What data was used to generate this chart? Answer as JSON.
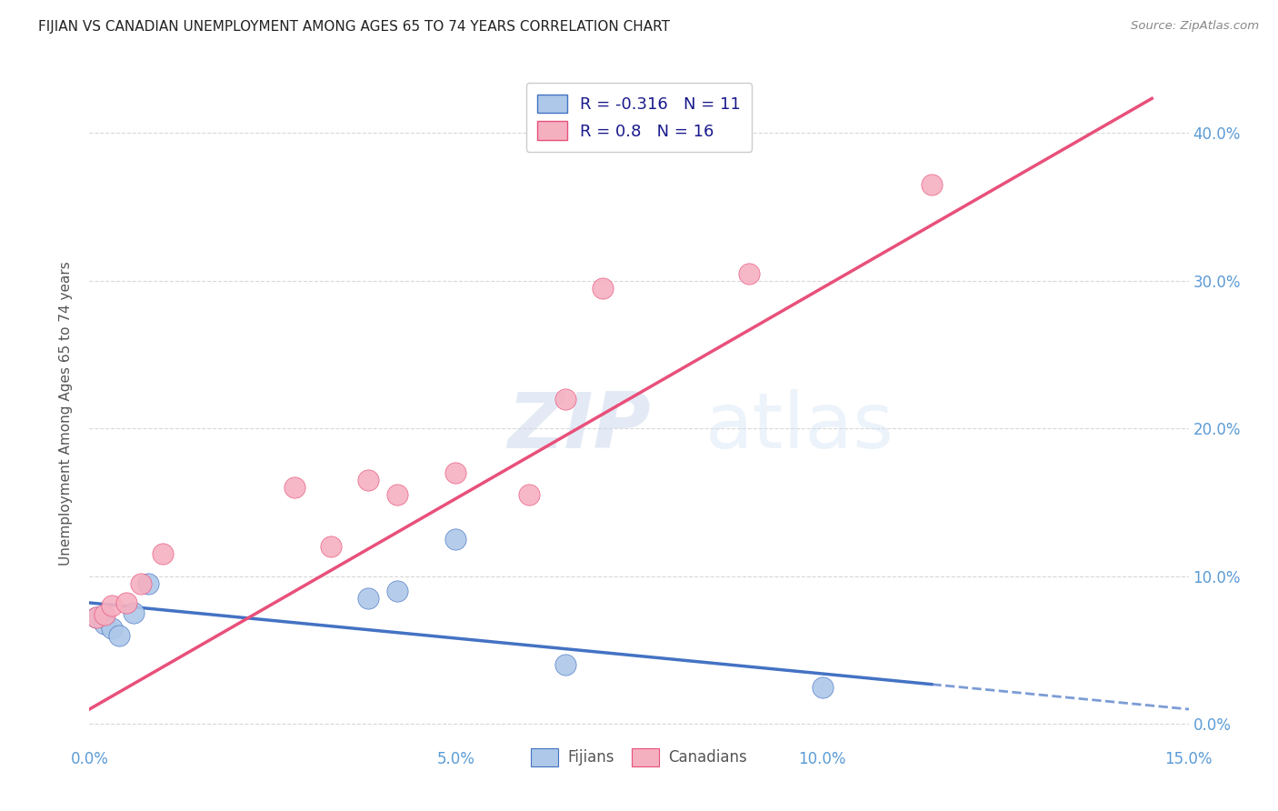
{
  "title": "FIJIAN VS CANADIAN UNEMPLOYMENT AMONG AGES 65 TO 74 YEARS CORRELATION CHART",
  "source": "Source: ZipAtlas.com",
  "ylabel": "Unemployment Among Ages 65 to 74 years",
  "xlim": [
    0.0,
    0.15
  ],
  "ylim": [
    -0.015,
    0.435
  ],
  "xticks": [
    0.0,
    0.025,
    0.05,
    0.075,
    0.1,
    0.125,
    0.15
  ],
  "xticklabels": [
    "0.0%",
    "",
    "5.0%",
    "",
    "10.0%",
    "",
    "15.0%"
  ],
  "yticks": [
    0.0,
    0.1,
    0.2,
    0.3,
    0.4
  ],
  "yticklabels": [
    "0.0%",
    "10.0%",
    "20.0%",
    "30.0%",
    "40.0%"
  ],
  "fijians_x": [
    0.001,
    0.002,
    0.003,
    0.004,
    0.006,
    0.008,
    0.038,
    0.042,
    0.05,
    0.065,
    0.1
  ],
  "fijians_y": [
    0.072,
    0.068,
    0.065,
    0.06,
    0.075,
    0.095,
    0.085,
    0.09,
    0.125,
    0.04,
    0.025
  ],
  "canadians_x": [
    0.001,
    0.002,
    0.003,
    0.005,
    0.007,
    0.01,
    0.028,
    0.033,
    0.038,
    0.042,
    0.05,
    0.06,
    0.065,
    0.07,
    0.09,
    0.115
  ],
  "canadians_y": [
    0.072,
    0.074,
    0.08,
    0.082,
    0.095,
    0.115,
    0.16,
    0.12,
    0.165,
    0.155,
    0.17,
    0.155,
    0.22,
    0.295,
    0.305,
    0.365
  ],
  "fijian_color": "#adc8e8",
  "canadian_color": "#f5b0c0",
  "fijian_line_color": "#4472c4",
  "canadian_line_color": "#e8507a",
  "fijian_line_intercept": 0.082,
  "fijian_line_slope": -0.48,
  "canadian_line_intercept": 0.01,
  "canadian_line_slope": 2.85,
  "R_fijian": -0.316,
  "N_fijian": 11,
  "R_canadian": 0.8,
  "N_canadian": 16,
  "watermark_zip": "ZIP",
  "watermark_atlas": "atlas",
  "background_color": "#ffffff",
  "grid_color": "#d8d8d8",
  "title_color": "#222222",
  "axis_label_color": "#555555",
  "tick_color": "#5b9bd5",
  "legend_text_color": "#1a1a8c",
  "source_color": "#888888"
}
